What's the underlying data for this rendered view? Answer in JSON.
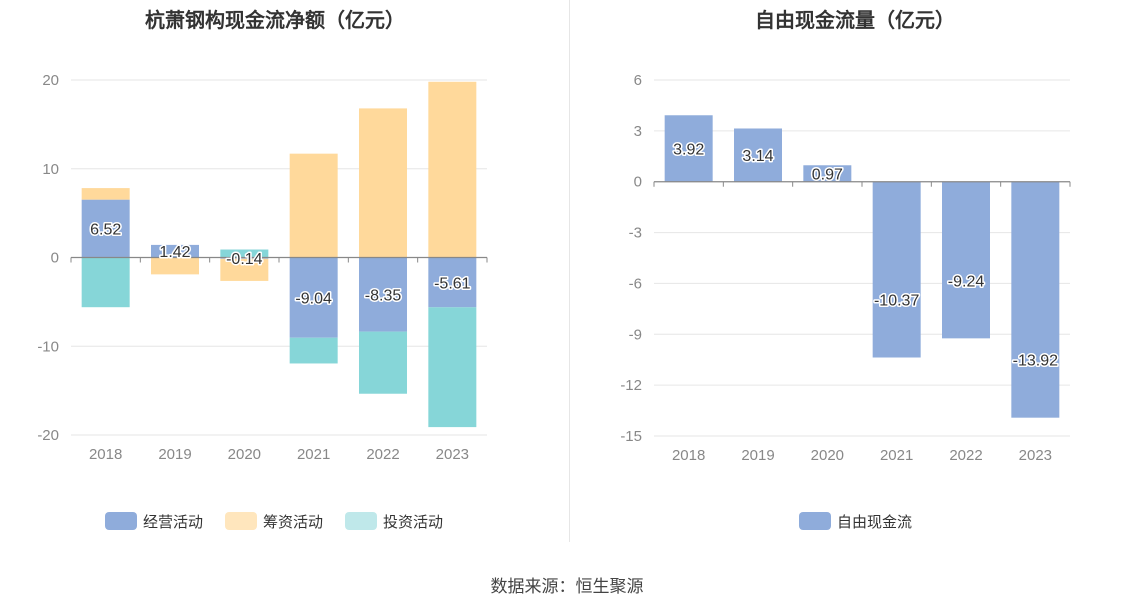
{
  "colors": {
    "operating": "#8facdb",
    "financing": "#ffd99b",
    "investing": "#86d6d8",
    "free_cash_flow": "#8facdb",
    "grid": "#e6e6e6",
    "axis": "#888888",
    "tick_text": "#888888"
  },
  "source": "数据来源：恒生聚源",
  "chart_data": [
    {
      "type": "bar",
      "stacked": true,
      "title": "杭萧钢构现金流净额（亿元）",
      "categories": [
        "2018",
        "2019",
        "2020",
        "2021",
        "2022",
        "2023"
      ],
      "series": [
        {
          "name": "经营活动",
          "color_key": "operating",
          "values": [
            6.52,
            1.42,
            -0.14,
            -9.04,
            -8.35,
            -5.61
          ],
          "labeled": true
        },
        {
          "name": "筹资活动",
          "color_key": "financing",
          "values": [
            1.3,
            -1.9,
            -2.5,
            11.7,
            16.8,
            19.8
          ],
          "labeled": false
        },
        {
          "name": "投资活动",
          "color_key": "investing",
          "values": [
            -5.6,
            0.0,
            0.9,
            -2.9,
            -7.0,
            -13.5
          ],
          "labeled": false
        }
      ],
      "ylim": [
        -20,
        20
      ],
      "yticks": [
        -20,
        -10,
        0,
        10,
        20
      ],
      "ytick_labels": [
        "-20",
        "-10",
        "0",
        "10",
        "20"
      ],
      "legend_position": "bottom",
      "grid": true
    },
    {
      "type": "bar",
      "title": "自由现金流量（亿元）",
      "categories": [
        "2018",
        "2019",
        "2020",
        "2021",
        "2022",
        "2023"
      ],
      "series": [
        {
          "name": "自由现金流",
          "color_key": "free_cash_flow",
          "values": [
            3.92,
            3.14,
            0.97,
            -10.37,
            -9.24,
            -13.92
          ],
          "labeled": true
        }
      ],
      "ylim": [
        -15,
        6
      ],
      "yticks": [
        -15,
        -12,
        -9,
        -6,
        -3,
        0,
        3,
        6
      ],
      "ytick_labels": [
        "-15",
        "-12",
        "-9",
        "-6",
        "-3",
        "0",
        "3",
        "6"
      ],
      "legend_position": "bottom",
      "grid": true
    }
  ]
}
